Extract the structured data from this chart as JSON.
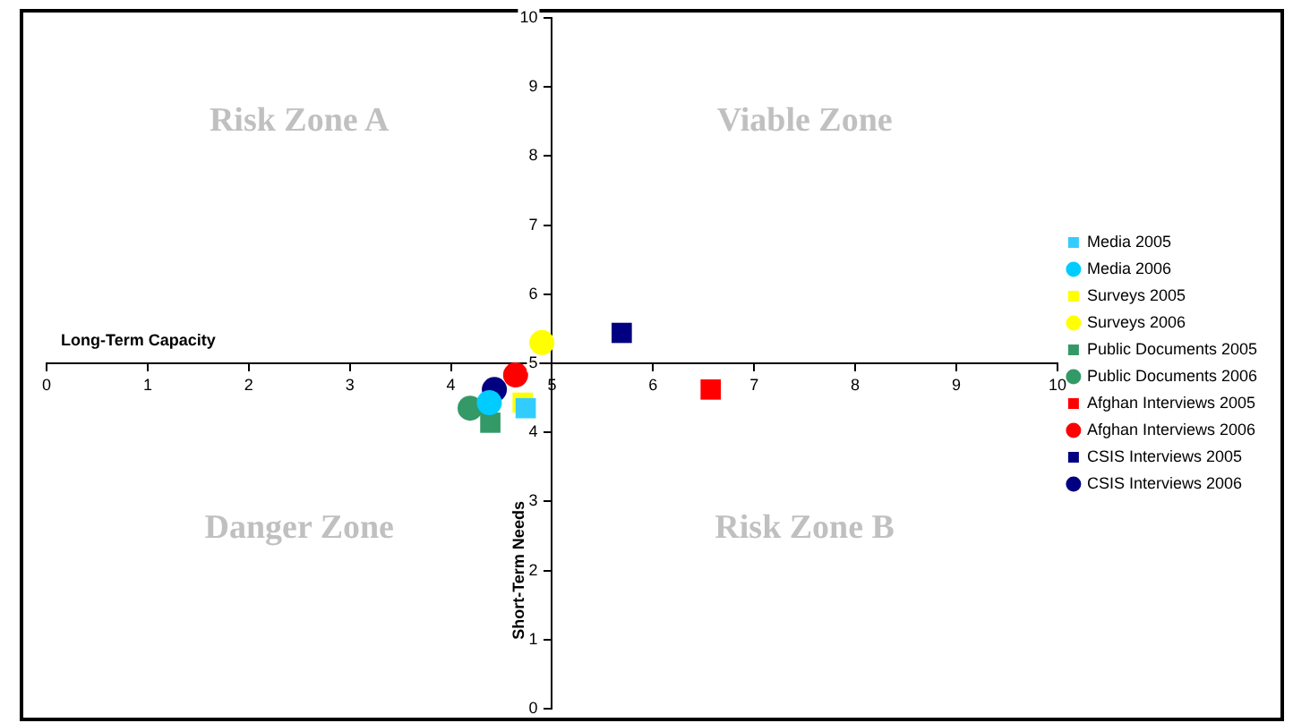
{
  "chart_data": {
    "type": "scatter",
    "xlabel": "Long-Term Capacity",
    "ylabel": "Short-Term Needs",
    "xlim": [
      0,
      10
    ],
    "ylim": [
      0,
      10
    ],
    "xticks": [
      0,
      1,
      2,
      3,
      4,
      5,
      6,
      7,
      8,
      9,
      10
    ],
    "yticks": [
      0,
      1,
      2,
      3,
      4,
      5,
      6,
      7,
      8,
      9,
      10
    ],
    "grid": false,
    "legend": "right",
    "annotations": [
      "Risk Zone A",
      "Viable Zone",
      "Danger Zone",
      "Risk Zone B"
    ],
    "series": [
      {
        "name": "Media 2005",
        "color": "#33ccff",
        "marker": "square",
        "x": [
          4.74
        ],
        "values": [
          4.35
        ]
      },
      {
        "name": "Media 2006",
        "color": "#00ccff",
        "marker": "circle",
        "x": [
          4.38
        ],
        "values": [
          4.43
        ]
      },
      {
        "name": "Surveys 2005",
        "color": "#ffff00",
        "marker": "square",
        "x": [
          4.71
        ],
        "values": [
          4.43
        ]
      },
      {
        "name": "Surveys 2006",
        "color": "#ffff00",
        "marker": "circle",
        "x": [
          4.9
        ],
        "values": [
          5.3
        ]
      },
      {
        "name": "Public Documents 2005",
        "color": "#339966",
        "marker": "square",
        "x": [
          4.39
        ],
        "values": [
          4.14
        ]
      },
      {
        "name": "Public Documents 2006",
        "color": "#339966",
        "marker": "circle",
        "x": [
          4.19
        ],
        "values": [
          4.35
        ]
      },
      {
        "name": "Afghan Interviews 2005",
        "color": "#ff0000",
        "marker": "square",
        "x": [
          6.57
        ],
        "values": [
          4.62
        ]
      },
      {
        "name": "Afghan Interviews 2006",
        "color": "#ff0000",
        "marker": "circle",
        "x": [
          4.64
        ],
        "values": [
          4.83
        ]
      },
      {
        "name": "CSIS Interviews 2005",
        "color": "#000080",
        "marker": "square",
        "x": [
          5.69
        ],
        "values": [
          5.44
        ]
      },
      {
        "name": "CSIS Interviews 2006",
        "color": "#000080",
        "marker": "circle",
        "x": [
          4.43
        ],
        "values": [
          4.62
        ]
      }
    ]
  }
}
